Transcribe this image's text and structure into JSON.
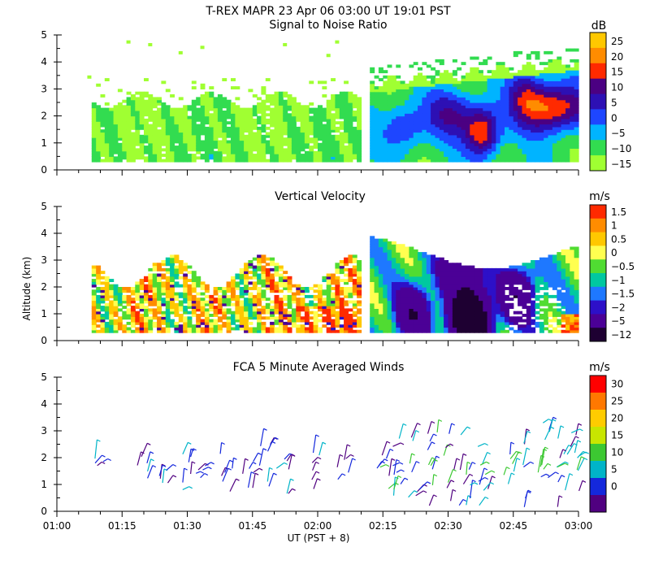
{
  "header": {
    "title": "T-REX  MAPR 23 Apr 06  03:00 UT  19:01  PST"
  },
  "axis": {
    "ylabel": "Altitude (km)",
    "xlabel": "UT  (PST + 8)",
    "x_ticks": [
      "01:00",
      "01:15",
      "01:30",
      "01:45",
      "02:00",
      "02:15",
      "02:30",
      "02:45",
      "03:00"
    ],
    "x_range_min": [
      0,
      120
    ],
    "y_ticks": [
      "0",
      "1",
      "2",
      "3",
      "4",
      "5"
    ],
    "y_range_km": [
      0,
      5
    ]
  },
  "chart_data": [
    {
      "type": "heatmap",
      "title": "Signal to Noise Ratio",
      "unit": "dB",
      "colorbar": {
        "labels": [
          "25",
          "20",
          "15",
          "10",
          "5",
          "0",
          "−5",
          "−10",
          "−15"
        ],
        "colors": [
          "#ffc800",
          "#ff8c00",
          "#ff2a00",
          "#4b0082",
          "#2d10b4",
          "#1e46ff",
          "#00b4ff",
          "#32dc50",
          "#a0ff32"
        ]
      },
      "data_gap_min": [
        70,
        72
      ],
      "features": [
        {
          "region": "01:08-02:00",
          "altitude_km": [
            0.3,
            2.6
          ],
          "snr_db": -10
        },
        {
          "region": "02:12-02:30",
          "altitude_km": [
            0.3,
            3.3
          ],
          "snr_db": 0
        },
        {
          "region": "02:30-02:40",
          "altitude_km": [
            0.3,
            2.8
          ],
          "snr_db": 15
        },
        {
          "region": "02:48-03:00",
          "altitude_km": [
            1.5,
            3.5
          ],
          "snr_db": 15
        }
      ]
    },
    {
      "type": "heatmap",
      "title": "Vertical Velocity",
      "unit": "m/s",
      "colorbar": {
        "labels": [
          "1.5",
          "1",
          "0.5",
          "0",
          "−0.5",
          "−1",
          "−1.5",
          "−2",
          "−5",
          "−12"
        ],
        "colors": [
          "#ff2a00",
          "#ff8c00",
          "#ffc800",
          "#ffff50",
          "#50dc32",
          "#00c8a0",
          "#1e78ff",
          "#2d10c8",
          "#4b0096",
          "#1e0032"
        ]
      },
      "data_gap_min": [
        70,
        72
      ],
      "features": [
        {
          "region": "01:08-02:00",
          "altitude_km": [
            0.3,
            3.2
          ],
          "w_ms": 0
        },
        {
          "region": "02:12-03:00",
          "altitude_km": [
            0.3,
            3.9
          ],
          "w_ms": -1
        },
        {
          "region": "02:32-02:40",
          "altitude_km": [
            0.3,
            1.5
          ],
          "w_ms": -12
        }
      ]
    },
    {
      "type": "wind-barbs",
      "title": "FCA 5 Minute Averaged Winds",
      "unit": "m/s",
      "colorbar": {
        "labels": [
          "30",
          "25",
          "20",
          "15",
          "10",
          "5",
          "0"
        ],
        "colors": [
          "#ff0000",
          "#ff7800",
          "#ffcc00",
          "#c8e600",
          "#3cc832",
          "#00b4c8",
          "#1428dc",
          "#500080"
        ]
      },
      "barb_altitude_km": [
        0.3,
        3.6
      ],
      "typical_speed_ms": [
        2,
        15
      ]
    }
  ]
}
